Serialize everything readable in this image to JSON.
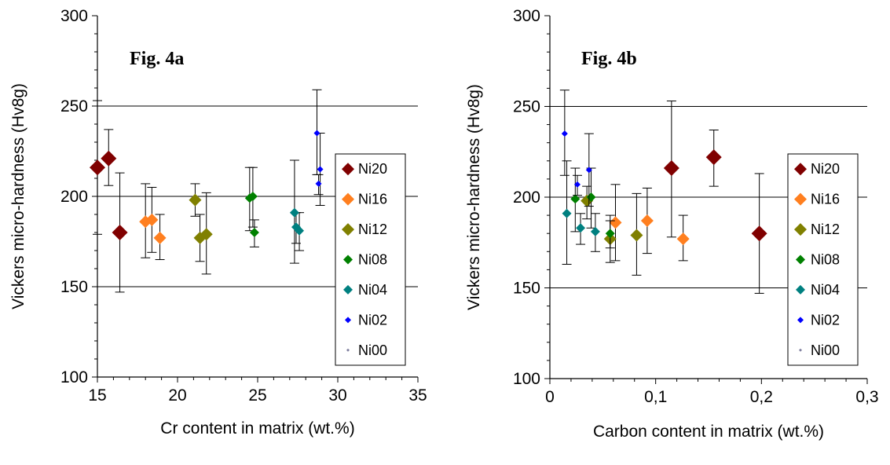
{
  "chart_data": [
    {
      "type": "scatter",
      "label": "Fig. 4a",
      "xlabel": "Cr content in matrix (wt.%)",
      "ylabel": "Vickers micro-hardness (Hv8g)",
      "xlim": [
        15,
        35
      ],
      "ylim": [
        100,
        300
      ],
      "xticks": [
        15,
        20,
        25,
        30,
        35
      ],
      "xtick_labels": [
        "15",
        "20",
        "25",
        "30",
        "35"
      ],
      "yticks": [
        100,
        150,
        200,
        250,
        300
      ],
      "ytick_labels": [
        "100",
        "150",
        "200",
        "250",
        "300"
      ],
      "grid": "horizontal major lines",
      "legend_position": "right",
      "series": [
        {
          "name": "Ni20",
          "color": "#800000",
          "marker_size": "large",
          "points": [
            {
              "x": 15.7,
              "y": 221,
              "err_low": 206,
              "err_high": 237
            },
            {
              "x": 16.4,
              "y": 180,
              "err_low": 147,
              "err_high": 213
            },
            {
              "x": 15.0,
              "y": 216,
              "err_low": 179,
              "err_high": 253
            }
          ]
        },
        {
          "name": "Ni16",
          "color": "#ff7f1f",
          "marker_size": "medium",
          "points": [
            {
              "x": 18.0,
              "y": 186,
              "err_low": 166,
              "err_high": 207
            },
            {
              "x": 18.4,
              "y": 187,
              "err_low": 169,
              "err_high": 205
            },
            {
              "x": 18.9,
              "y": 177,
              "err_low": 165,
              "err_high": 190
            }
          ]
        },
        {
          "name": "Ni12",
          "color": "#808000",
          "marker_size": "medium",
          "points": [
            {
              "x": 21.1,
              "y": 198,
              "err_low": 189,
              "err_high": 207
            },
            {
              "x": 21.4,
              "y": 177,
              "err_low": 164,
              "err_high": 190
            },
            {
              "x": 21.8,
              "y": 179,
              "err_low": 157,
              "err_high": 202
            }
          ]
        },
        {
          "name": "Ni08",
          "color": "#008000",
          "marker_size": "small",
          "points": [
            {
              "x": 24.5,
              "y": 199,
              "err_low": 181,
              "err_high": 216
            },
            {
              "x": 24.7,
              "y": 200,
              "err_low": 183,
              "err_high": 216
            },
            {
              "x": 24.8,
              "y": 180,
              "err_low": 172,
              "err_high": 187
            }
          ]
        },
        {
          "name": "Ni04",
          "color": "#008080",
          "marker_size": "small",
          "points": [
            {
              "x": 27.3,
              "y": 191,
              "err_low": 163,
              "err_high": 220
            },
            {
              "x": 27.4,
              "y": 183,
              "err_low": 174,
              "err_high": 191
            },
            {
              "x": 27.6,
              "y": 181,
              "err_low": 170,
              "err_high": 191
            }
          ]
        },
        {
          "name": "Ni02",
          "color": "#0000ff",
          "marker_size": "tiny",
          "points": [
            {
              "x": 28.7,
              "y": 235,
              "err_low": 212,
              "err_high": 259
            },
            {
              "x": 28.8,
              "y": 207,
              "err_low": 201,
              "err_high": 212
            },
            {
              "x": 28.9,
              "y": 215,
              "err_low": 195,
              "err_high": 235
            }
          ]
        },
        {
          "name": "Ni00",
          "color": "#7f7f9f",
          "marker_size": "dot",
          "points": []
        }
      ]
    },
    {
      "type": "scatter",
      "label": "Fig. 4b",
      "xlabel": "Carbon content in matrix (wt.%)",
      "ylabel": "Vickers micro-hardness (Hv8g)",
      "xlim": [
        0,
        0.3
      ],
      "ylim": [
        100,
        300
      ],
      "xticks": [
        0,
        0.1,
        0.2,
        0.3
      ],
      "xtick_labels": [
        "0",
        "0,1",
        "0,2",
        "0,3"
      ],
      "yticks": [
        100,
        150,
        200,
        250,
        300
      ],
      "ytick_labels": [
        "100",
        "150",
        "200",
        "250",
        "300"
      ],
      "grid": "horizontal major lines",
      "legend_position": "right",
      "series": [
        {
          "name": "Ni20",
          "color": "#800000",
          "marker_size": "large",
          "points": [
            {
              "x": 0.115,
              "y": 216,
              "err_low": 178,
              "err_high": 253
            },
            {
              "x": 0.155,
              "y": 222,
              "err_low": 206,
              "err_high": 237
            },
            {
              "x": 0.198,
              "y": 180,
              "err_low": 147,
              "err_high": 213
            }
          ]
        },
        {
          "name": "Ni16",
          "color": "#ff7f1f",
          "marker_size": "medium",
          "points": [
            {
              "x": 0.062,
              "y": 186,
              "err_low": 165,
              "err_high": 207
            },
            {
              "x": 0.092,
              "y": 187,
              "err_low": 169,
              "err_high": 205
            },
            {
              "x": 0.126,
              "y": 177,
              "err_low": 165,
              "err_high": 190
            }
          ]
        },
        {
          "name": "Ni12",
          "color": "#808000",
          "marker_size": "medium",
          "points": [
            {
              "x": 0.035,
              "y": 198,
              "err_low": 188,
              "err_high": 206
            },
            {
              "x": 0.057,
              "y": 177,
              "err_low": 164,
              "err_high": 190
            },
            {
              "x": 0.082,
              "y": 179,
              "err_low": 157,
              "err_high": 202
            }
          ]
        },
        {
          "name": "Ni08",
          "color": "#008000",
          "marker_size": "small",
          "points": [
            {
              "x": 0.024,
              "y": 199,
              "err_low": 181,
              "err_high": 216
            },
            {
              "x": 0.039,
              "y": 200,
              "err_low": 183,
              "err_high": 216
            },
            {
              "x": 0.057,
              "y": 180,
              "err_low": 172,
              "err_high": 187
            }
          ]
        },
        {
          "name": "Ni04",
          "color": "#008080",
          "marker_size": "small",
          "points": [
            {
              "x": 0.016,
              "y": 191,
              "err_low": 163,
              "err_high": 220
            },
            {
              "x": 0.029,
              "y": 183,
              "err_low": 174,
              "err_high": 191
            },
            {
              "x": 0.043,
              "y": 181,
              "err_low": 170,
              "err_high": 191
            }
          ]
        },
        {
          "name": "Ni02",
          "color": "#0000ff",
          "marker_size": "tiny",
          "points": [
            {
              "x": 0.014,
              "y": 235,
              "err_low": 212,
              "err_high": 259
            },
            {
              "x": 0.026,
              "y": 207,
              "err_low": 201,
              "err_high": 212
            },
            {
              "x": 0.037,
              "y": 215,
              "err_low": 195,
              "err_high": 235
            }
          ]
        },
        {
          "name": "Ni00",
          "color": "#7f7f9f",
          "marker_size": "dot",
          "points": []
        }
      ]
    }
  ]
}
